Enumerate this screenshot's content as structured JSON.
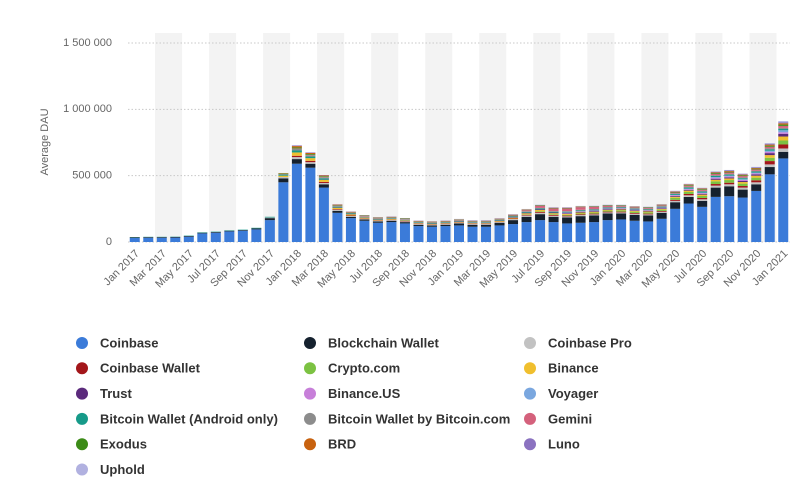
{
  "chart_data": {
    "type": "stacked_bar",
    "y_label": "Average DAU",
    "categories": [
      "Jan 2017",
      null,
      "Mar 2017",
      null,
      "May 2017",
      null,
      "Jul 2017",
      null,
      "Sep 2017",
      null,
      "Nov 2017",
      null,
      "Jan 2018",
      null,
      "Mar 2018",
      null,
      "May 2018",
      null,
      "Jul 2018",
      null,
      "Sep 2018",
      null,
      "Nov 2018",
      null,
      "Jan 2019",
      null,
      "Mar 2019",
      null,
      "May 2019",
      null,
      "Jul 2019",
      null,
      "Sep 2019",
      null,
      "Nov 2019",
      null,
      "Jan 2020",
      null,
      "Mar 2020",
      null,
      "May 2020",
      null,
      "Jul 2020",
      null,
      "Sep 2020",
      null,
      "Nov 2020",
      null,
      "Jan 2021"
    ],
    "ylim": [
      0,
      1500000
    ],
    "yticks": [
      0,
      {
        "value": 500000,
        "label": "500 000"
      },
      {
        "value": 1000000,
        "label": "1 000 000"
      },
      {
        "value": 1500000,
        "label": "1 500 000"
      }
    ],
    "grid": true,
    "series": [
      {
        "name": "Coinbase",
        "color": "#3b7bd9",
        "values": [
          30000,
          32000,
          32000,
          33000,
          40000,
          65000,
          70000,
          80000,
          85000,
          95000,
          165000,
          450000,
          590000,
          560000,
          410000,
          220000,
          180000,
          160000,
          145000,
          150000,
          140000,
          120000,
          115000,
          120000,
          125000,
          115000,
          115000,
          125000,
          135000,
          150000,
          165000,
          150000,
          140000,
          145000,
          150000,
          165000,
          170000,
          160000,
          155000,
          175000,
          250000,
          290000,
          265000,
          340000,
          345000,
          335000,
          385000,
          510000,
          630000
        ]
      },
      {
        "name": "Blockchain Wallet",
        "color": "#15212e",
        "values": [
          5000,
          5000,
          5000,
          5000,
          5000,
          5000,
          5000,
          5000,
          5000,
          8000,
          15000,
          30000,
          35000,
          30000,
          25000,
          15000,
          10000,
          10000,
          10000,
          10000,
          10000,
          10000,
          10000,
          10000,
          15000,
          15000,
          15000,
          20000,
          30000,
          40000,
          45000,
          40000,
          45000,
          50000,
          50000,
          50000,
          45000,
          45000,
          45000,
          45000,
          50000,
          50000,
          45000,
          70000,
          75000,
          60000,
          50000,
          55000,
          50000
        ]
      },
      {
        "name": "Coinbase Pro",
        "color": "#c2c2c2",
        "values": [
          0,
          0,
          0,
          0,
          0,
          0,
          0,
          0,
          0,
          0,
          5000,
          10000,
          15000,
          12000,
          10000,
          8000,
          6000,
          5000,
          5000,
          5000,
          5000,
          5000,
          5000,
          5000,
          5000,
          5000,
          5000,
          5000,
          8000,
          10000,
          10000,
          8000,
          8000,
          8000,
          8000,
          8000,
          8000,
          8000,
          8000,
          8000,
          10000,
          12000,
          12000,
          15000,
          15000,
          15000,
          15000,
          20000,
          25000
        ]
      },
      {
        "name": "Coinbase Wallet",
        "color": "#a3161a",
        "values": [
          0,
          0,
          0,
          0,
          0,
          0,
          0,
          0,
          0,
          0,
          0,
          0,
          10000,
          10000,
          8000,
          5000,
          4000,
          3000,
          3000,
          3000,
          3000,
          3000,
          3000,
          3000,
          3000,
          3000,
          3000,
          3000,
          4000,
          5000,
          6000,
          6000,
          6000,
          6000,
          6000,
          6000,
          6000,
          6000,
          6000,
          6000,
          8000,
          10000,
          10000,
          12000,
          12000,
          12000,
          15000,
          25000,
          30000
        ]
      },
      {
        "name": "Crypto.com",
        "color": "#7cc242",
        "values": [
          0,
          0,
          0,
          0,
          0,
          0,
          0,
          0,
          0,
          0,
          0,
          0,
          0,
          0,
          0,
          0,
          0,
          0,
          0,
          0,
          0,
          0,
          0,
          0,
          0,
          0,
          0,
          0,
          0,
          3000,
          5000,
          5000,
          6000,
          6000,
          8000,
          8000,
          10000,
          10000,
          10000,
          10000,
          15000,
          15000,
          15000,
          20000,
          20000,
          18000,
          20000,
          25000,
          30000
        ]
      },
      {
        "name": "Binance",
        "color": "#f0bf2e",
        "values": [
          0,
          0,
          0,
          0,
          0,
          0,
          0,
          0,
          0,
          0,
          0,
          10000,
          25000,
          20000,
          15000,
          10000,
          8000,
          6000,
          5000,
          5000,
          4000,
          4000,
          4000,
          4000,
          4000,
          4000,
          4000,
          5000,
          6000,
          8000,
          10000,
          8000,
          7000,
          7000,
          6000,
          6000,
          6000,
          6000,
          6000,
          6000,
          8000,
          10000,
          10000,
          12000,
          12000,
          12000,
          15000,
          20000,
          30000
        ]
      },
      {
        "name": "Trust",
        "color": "#5b2a7c",
        "values": [
          0,
          0,
          0,
          0,
          0,
          0,
          0,
          0,
          0,
          0,
          0,
          0,
          0,
          0,
          2000,
          2000,
          2000,
          2000,
          2000,
          2000,
          2000,
          2000,
          2000,
          2000,
          3000,
          3000,
          3000,
          3000,
          4000,
          5000,
          5000,
          5000,
          5000,
          5000,
          5000,
          5000,
          5000,
          5000,
          5000,
          5000,
          6000,
          6000,
          6000,
          8000,
          8000,
          8000,
          10000,
          15000,
          20000
        ]
      },
      {
        "name": "Binance.US",
        "color": "#c77fd9",
        "values": [
          0,
          0,
          0,
          0,
          0,
          0,
          0,
          0,
          0,
          0,
          0,
          0,
          0,
          0,
          0,
          0,
          0,
          0,
          0,
          0,
          0,
          0,
          0,
          0,
          0,
          0,
          0,
          0,
          0,
          0,
          0,
          0,
          5000,
          5000,
          5000,
          5000,
          5000,
          5000,
          5000,
          5000,
          6000,
          6000,
          6000,
          8000,
          8000,
          8000,
          8000,
          10000,
          12000
        ]
      },
      {
        "name": "Voyager",
        "color": "#7aa7df",
        "values": [
          0,
          0,
          0,
          0,
          0,
          0,
          0,
          0,
          0,
          0,
          0,
          0,
          0,
          0,
          0,
          0,
          0,
          0,
          0,
          0,
          0,
          0,
          0,
          0,
          0,
          0,
          0,
          0,
          0,
          0,
          0,
          0,
          0,
          0,
          0,
          0,
          0,
          0,
          0,
          0,
          2000,
          3000,
          3000,
          5000,
          5000,
          5000,
          5000,
          8000,
          15000
        ]
      },
      {
        "name": "Bitcoin Wallet (Android only)",
        "color": "#169a89",
        "values": [
          2000,
          2000,
          2000,
          2000,
          3000,
          3000,
          3000,
          3000,
          3000,
          4000,
          5000,
          8000,
          15000,
          12000,
          10000,
          6000,
          5000,
          4000,
          4000,
          4000,
          4000,
          4000,
          4000,
          4000,
          4000,
          4000,
          4000,
          4000,
          5000,
          6000,
          6000,
          6000,
          6000,
          6000,
          6000,
          6000,
          6000,
          6000,
          6000,
          6000,
          7000,
          8000,
          8000,
          8000,
          8000,
          8000,
          8000,
          10000,
          10000
        ]
      },
      {
        "name": "Bitcoin Wallet by Bitcoin.com",
        "color": "#8c8c8c",
        "values": [
          0,
          0,
          0,
          0,
          0,
          0,
          0,
          0,
          0,
          0,
          0,
          5000,
          12000,
          10000,
          8000,
          5000,
          4000,
          3000,
          3000,
          3000,
          3000,
          3000,
          3000,
          3000,
          3000,
          3000,
          3000,
          3000,
          4000,
          5000,
          5000,
          5000,
          5000,
          5000,
          5000,
          5000,
          5000,
          5000,
          5000,
          5000,
          5000,
          6000,
          6000,
          6000,
          6000,
          6000,
          6000,
          8000,
          8000
        ]
      },
      {
        "name": "Gemini",
        "color": "#d4617c",
        "values": [
          0,
          0,
          0,
          0,
          0,
          0,
          0,
          0,
          0,
          0,
          0,
          0,
          3000,
          3000,
          3000,
          3000,
          3000,
          3000,
          3000,
          3000,
          3000,
          3000,
          3000,
          3000,
          3000,
          3000,
          3000,
          3000,
          5000,
          8000,
          15000,
          20000,
          20000,
          20000,
          15000,
          8000,
          6000,
          6000,
          6000,
          6000,
          6000,
          8000,
          8000,
          10000,
          10000,
          10000,
          10000,
          12000,
          15000
        ]
      },
      {
        "name": "Exodus",
        "color": "#3c8b17",
        "values": [
          0,
          0,
          0,
          0,
          0,
          0,
          0,
          0,
          0,
          0,
          0,
          3000,
          8000,
          6000,
          5000,
          4000,
          3000,
          3000,
          3000,
          3000,
          3000,
          3000,
          3000,
          3000,
          3000,
          3000,
          3000,
          3000,
          3000,
          3000,
          3000,
          3000,
          3000,
          3000,
          3000,
          3000,
          3000,
          3000,
          3000,
          3000,
          4000,
          5000,
          5000,
          6000,
          6000,
          6000,
          6000,
          8000,
          10000
        ]
      },
      {
        "name": "BRD",
        "color": "#c8620f",
        "values": [
          0,
          0,
          0,
          0,
          0,
          0,
          0,
          0,
          0,
          0,
          0,
          3000,
          10000,
          8000,
          6000,
          4000,
          3000,
          2000,
          2000,
          2000,
          2000,
          2000,
          2000,
          2000,
          2000,
          2000,
          2000,
          2000,
          2000,
          2000,
          2000,
          2000,
          2000,
          2000,
          2000,
          2000,
          2000,
          2000,
          2000,
          2000,
          3000,
          4000,
          4000,
          5000,
          5000,
          5000,
          5000,
          8000,
          10000
        ]
      },
      {
        "name": "Luno",
        "color": "#8b72c0",
        "values": [
          0,
          0,
          0,
          0,
          0,
          0,
          0,
          0,
          0,
          0,
          0,
          0,
          5000,
          4000,
          3000,
          2000,
          2000,
          2000,
          2000,
          2000,
          2000,
          2000,
          2000,
          2000,
          2000,
          2000,
          2000,
          2000,
          2000,
          2000,
          2000,
          2000,
          2000,
          2000,
          2000,
          2000,
          2000,
          2000,
          2000,
          2000,
          3000,
          3000,
          3000,
          4000,
          4000,
          4000,
          4000,
          6000,
          8000
        ]
      },
      {
        "name": "Uphold",
        "color": "#b1b1e0",
        "values": [
          0,
          0,
          0,
          0,
          0,
          0,
          0,
          0,
          0,
          0,
          0,
          0,
          0,
          0,
          0,
          0,
          0,
          0,
          0,
          0,
          0,
          0,
          0,
          0,
          2000,
          2000,
          2000,
          2000,
          2000,
          2000,
          2000,
          2000,
          2000,
          2000,
          2000,
          2000,
          2000,
          2000,
          2000,
          2000,
          3000,
          3000,
          3000,
          4000,
          4000,
          4000,
          4000,
          6000,
          8000
        ]
      }
    ]
  }
}
